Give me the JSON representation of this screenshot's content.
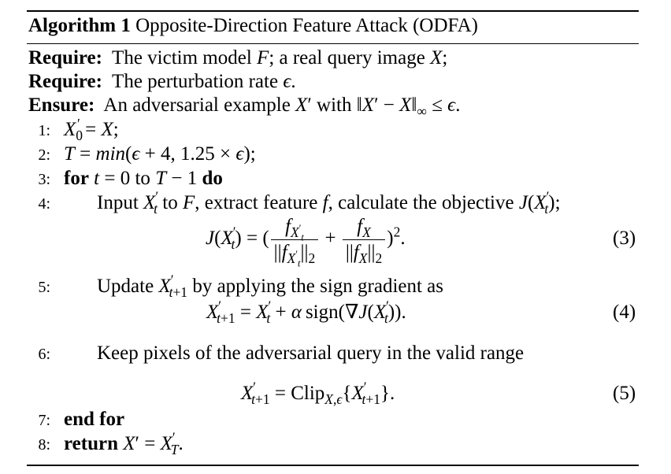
{
  "algorithm": {
    "label": "Algorithm 1",
    "title": "Opposite-Direction Feature Attack (ODFA)",
    "require_label": "Require:",
    "require_1_text": "The victim model",
    "require_1_mid": "; a real query image",
    "require_2_text": "The perturbation rate",
    "ensure_label": "Ensure:",
    "ensure_text": "An adversarial example",
    "ensure_mid": "with"
  },
  "steps": {
    "n1": "1:",
    "n2": "2:",
    "n3": "3:",
    "n4": "4:",
    "n5": "5:",
    "n6": "6:",
    "n7": "7:",
    "n8": "8:",
    "for_kw": "for",
    "to_kw": "to",
    "do_kw": "do",
    "step4_a": "Input",
    "step4_b": "to",
    "step4_c": ", extract feature",
    "step4_d": ", calculate the objective",
    "step5_a": "Update",
    "step5_b": "by applying the sign gradient as",
    "step6": "Keep pixels of the adversarial query in the valid range",
    "end_for": "end for",
    "return_kw": "return"
  },
  "equations": {
    "eq3_number": "(3)",
    "eq4_number": "(4)",
    "eq5_number": "(5)",
    "sign_text": "sign",
    "clip_text": "Clip"
  }
}
